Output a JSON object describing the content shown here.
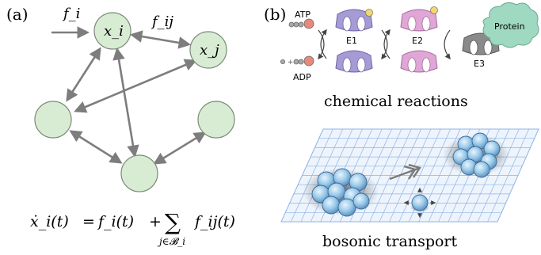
{
  "panel_a": {
    "label": "(a)",
    "edge_labels": {
      "input": "f_i",
      "coupling": "f_ij"
    },
    "nodes": [
      {
        "id": "xi",
        "label": "x_i"
      },
      {
        "id": "xj",
        "label": "x_j"
      },
      {
        "id": "n3",
        "label": ""
      },
      {
        "id": "n4",
        "label": ""
      },
      {
        "id": "n5",
        "label": ""
      }
    ],
    "equation": {
      "lhs": "ẋ_i(t)",
      "equals": "=",
      "term1": "f_i(t)",
      "plus": "+",
      "sum": "∑",
      "sum_index": "j∈𝓑_i",
      "term2": "f_ij(t)"
    }
  },
  "panel_b": {
    "label": "(b)",
    "chemical": {
      "atp": "ATP",
      "adp": "ADP",
      "enzymes": [
        "E1",
        "E2",
        "E3"
      ],
      "protein": "Protein",
      "caption": "chemical reactions"
    },
    "transport": {
      "caption": "bosonic transport"
    }
  },
  "colors": {
    "node_fill": "#d8ecd4",
    "node_stroke": "#7a8a78",
    "arrow": "#7d7d7d",
    "e1": "#a79bd6",
    "e2": "#e0a6d6",
    "e3": "#8a8a8a",
    "protein": "#9fd9c2",
    "grid": "#8fb3e6",
    "boson": "#8fc4ea"
  }
}
